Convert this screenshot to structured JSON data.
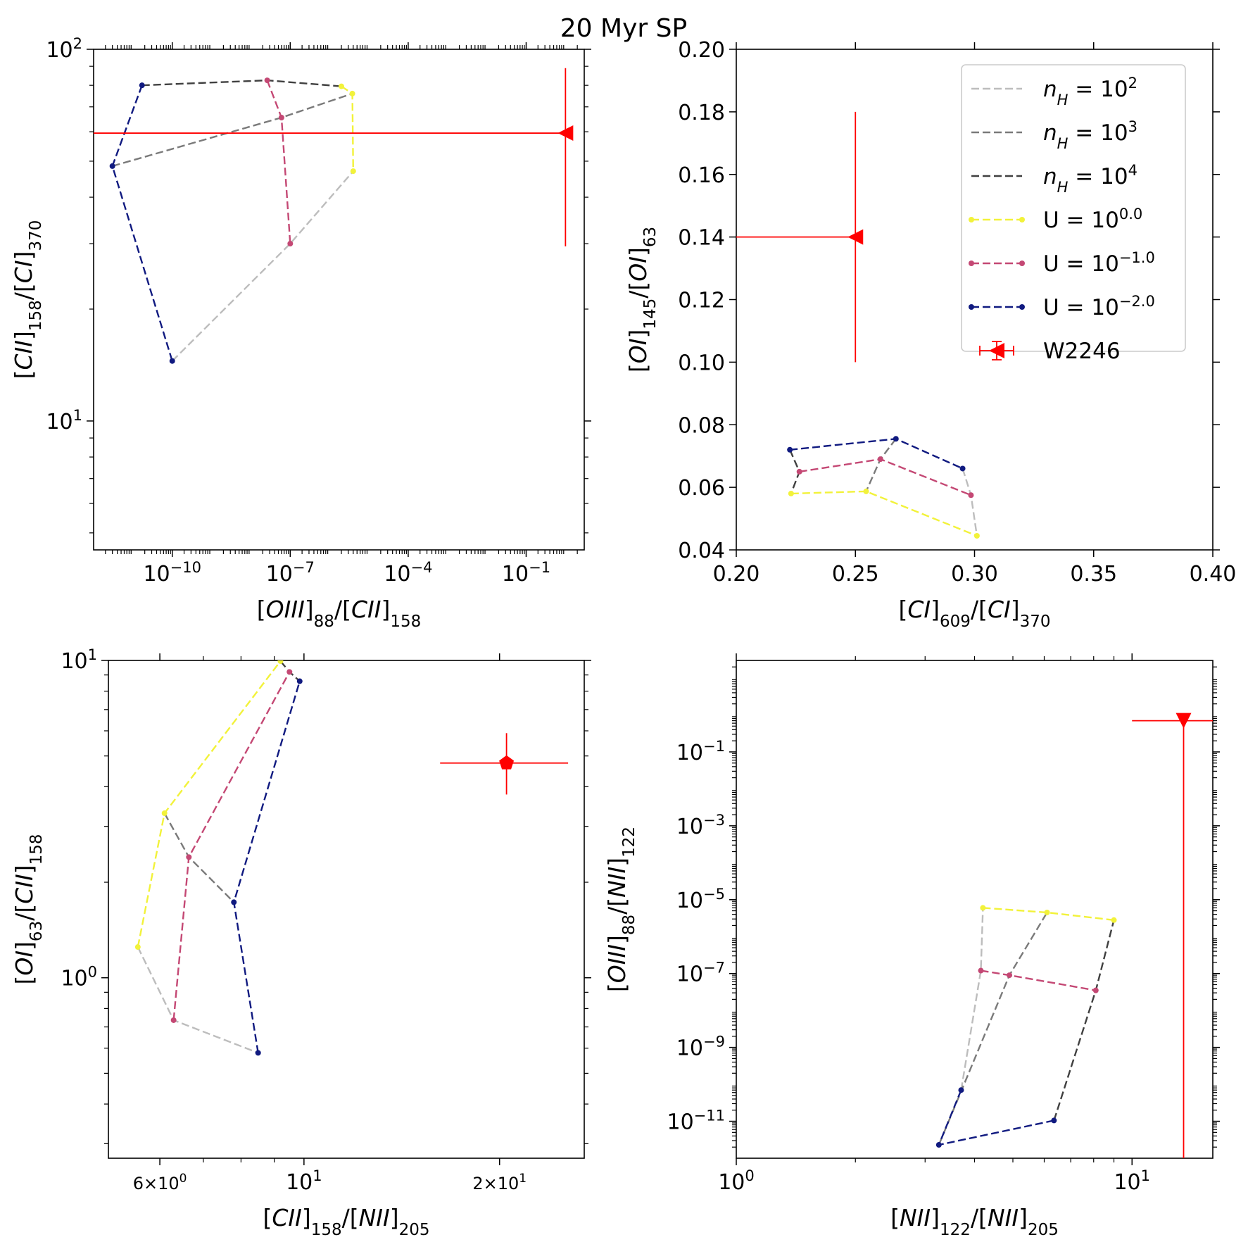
{
  "title": "20 Myr SP",
  "colors": {
    "nH_1e2": "#bdbdbd",
    "nH_1e3": "#7a7a7a",
    "nH_1e4": "#404040",
    "U_0": "#f2f23a",
    "U_m1": "#c44874",
    "U_m2": "#101a80",
    "obs": "#ff0000"
  },
  "legend": {
    "entries": [
      {
        "key": "nH2",
        "base": "n",
        "sub": "H",
        "mid": " = 10",
        "sup": "2",
        "style": "line",
        "color_key": "nH_1e2"
      },
      {
        "key": "nH3",
        "base": "n",
        "sub": "H",
        "mid": " = 10",
        "sup": "3",
        "style": "line",
        "color_key": "nH_1e3"
      },
      {
        "key": "nH4",
        "base": "n",
        "sub": "H",
        "mid": " = 10",
        "sup": "4",
        "style": "line",
        "color_key": "nH_1e4"
      },
      {
        "key": "U0",
        "base": "U = 10",
        "sup": "0.0",
        "style": "marker-line",
        "color_key": "U_0"
      },
      {
        "key": "Um1",
        "base": "U = 10",
        "sup": "−1.0",
        "style": "marker-line",
        "color_key": "U_m1"
      },
      {
        "key": "Um2",
        "base": "U = 10",
        "sup": "−2.0",
        "style": "marker-line",
        "color_key": "U_m2"
      },
      {
        "key": "obs",
        "base": "W2246",
        "style": "errorbar",
        "color_key": "obs"
      }
    ]
  },
  "chart_data": [
    {
      "id": "p1",
      "type": "line",
      "xscale": "log",
      "yscale": "log",
      "xlim": [
        1e-12,
        3
      ],
      "ylim": [
        4.5,
        100
      ],
      "xlabel": {
        "label": "OIII",
        "sub": "88",
        "label2": "CII",
        "sub2": "158"
      },
      "ylabel": {
        "label": "CII",
        "sub": "158",
        "label2": "CI",
        "sub2": "370"
      },
      "xticks": [
        {
          "v": 1e-10,
          "m": "10",
          "e": "−10"
        },
        {
          "v": 1e-07,
          "m": "10",
          "e": "−7"
        },
        {
          "v": 0.0001,
          "m": "10",
          "e": "−4"
        },
        {
          "v": 0.1,
          "m": "10",
          "e": "−1"
        }
      ],
      "yticks": [
        {
          "v": 10,
          "m": "10",
          "e": "1"
        },
        {
          "v": 100,
          "m": "10",
          "e": "2"
        }
      ],
      "series": [
        {
          "name": "nH=1e2",
          "color_key": "nH_1e2",
          "markers": false,
          "x": [
            1e-10,
            1e-07,
            4e-06
          ],
          "y": [
            14.5,
            30,
            47
          ]
        },
        {
          "name": "nH=1e3",
          "color_key": "nH_1e3",
          "markers": false,
          "x": [
            3e-12,
            6e-08,
            3.8e-06
          ],
          "y": [
            48.5,
            65.5,
            76
          ]
        },
        {
          "name": "nH=1e4",
          "color_key": "nH_1e4",
          "markers": false,
          "x": [
            1.7e-11,
            2.6e-08,
            2e-06
          ],
          "y": [
            80,
            82.5,
            79.5
          ]
        },
        {
          "name": "U=1e0",
          "color_key": "U_0",
          "markers": true,
          "x": [
            2e-06,
            3.8e-06,
            4e-06
          ],
          "y": [
            79.5,
            76,
            47
          ]
        },
        {
          "name": "U=1e-1",
          "color_key": "U_m1",
          "markers": true,
          "x": [
            2.6e-08,
            6e-08,
            1e-07
          ],
          "y": [
            82.5,
            65.5,
            30
          ]
        },
        {
          "name": "U=1e-2",
          "color_key": "U_m2",
          "markers": true,
          "x": [
            1.7e-11,
            3e-12,
            1e-10
          ],
          "y": [
            80,
            48.5,
            14.5
          ]
        }
      ],
      "obs": {
        "x": 1.0,
        "y": 59.5,
        "marker": "triangle-left",
        "xerr_lo": 1e-12,
        "xerr_hi": 1.0,
        "yerr_lo": 29.5,
        "yerr_hi": 89
      }
    },
    {
      "id": "p2",
      "type": "line",
      "xscale": "linear",
      "yscale": "linear",
      "xlim": [
        0.2,
        0.4
      ],
      "ylim": [
        0.04,
        0.2
      ],
      "xlabel": {
        "label": "CI",
        "sub": "609",
        "label2": "CI",
        "sub2": "370"
      },
      "ylabel": {
        "label": "OI",
        "sub": "145",
        "label2": "OI",
        "sub2": "63"
      },
      "xticks": [
        {
          "v": 0.2,
          "t": "0.20"
        },
        {
          "v": 0.25,
          "t": "0.25"
        },
        {
          "v": 0.3,
          "t": "0.30"
        },
        {
          "v": 0.35,
          "t": "0.35"
        },
        {
          "v": 0.4,
          "t": "0.40"
        }
      ],
      "yticks": [
        {
          "v": 0.04,
          "t": "0.04"
        },
        {
          "v": 0.06,
          "t": "0.06"
        },
        {
          "v": 0.08,
          "t": "0.08"
        },
        {
          "v": 0.1,
          "t": "0.10"
        },
        {
          "v": 0.12,
          "t": "0.12"
        },
        {
          "v": 0.14,
          "t": "0.14"
        },
        {
          "v": 0.16,
          "t": "0.16"
        },
        {
          "v": 0.18,
          "t": "0.18"
        },
        {
          "v": 0.2,
          "t": "0.20"
        }
      ],
      "series": [
        {
          "name": "nH=1e2",
          "color_key": "nH_1e2",
          "markers": false,
          "x": [
            0.295,
            0.2985,
            0.301
          ],
          "y": [
            0.066,
            0.0575,
            0.0445
          ]
        },
        {
          "name": "nH=1e3",
          "color_key": "nH_1e3",
          "markers": false,
          "x": [
            0.267,
            0.2605,
            0.2545
          ],
          "y": [
            0.0755,
            0.069,
            0.0587
          ]
        },
        {
          "name": "nH=1e4",
          "color_key": "nH_1e4",
          "markers": false,
          "x": [
            0.2225,
            0.2265,
            0.223
          ],
          "y": [
            0.072,
            0.065,
            0.058
          ]
        },
        {
          "name": "U=1e0",
          "color_key": "U_0",
          "markers": true,
          "x": [
            0.223,
            0.2545,
            0.301
          ],
          "y": [
            0.058,
            0.0587,
            0.0445
          ]
        },
        {
          "name": "U=1e-1",
          "color_key": "U_m1",
          "markers": true,
          "x": [
            0.2265,
            0.2605,
            0.2985
          ],
          "y": [
            0.065,
            0.069,
            0.0575
          ]
        },
        {
          "name": "U=1e-2",
          "color_key": "U_m2",
          "markers": true,
          "x": [
            0.2225,
            0.267,
            0.295
          ],
          "y": [
            0.072,
            0.0755,
            0.066
          ]
        }
      ],
      "obs": {
        "x": 0.25,
        "y": 0.14,
        "marker": "triangle-left",
        "xerr_lo": 0.2,
        "xerr_hi": 0.25,
        "yerr_lo": 0.1,
        "yerr_hi": 0.18
      }
    },
    {
      "id": "p3",
      "type": "line",
      "xscale": "log",
      "yscale": "log",
      "xlim": [
        5.0,
        27
      ],
      "ylim": [
        0.27,
        10
      ],
      "xlabel": {
        "label": "CII",
        "sub": "158",
        "label2": "NII",
        "sub2": "205"
      },
      "ylabel": {
        "label": "OI",
        "sub": "63",
        "label2": "CII",
        "sub2": "158"
      },
      "xticks": [
        {
          "v": 6,
          "m": "6×10",
          "e": "0",
          "small": true
        },
        {
          "v": 10,
          "m": "10",
          "e": "1"
        },
        {
          "v": 20,
          "m": "2×10",
          "e": "1",
          "small": true
        }
      ],
      "yticks": [
        {
          "v": 1,
          "m": "10",
          "e": "0"
        },
        {
          "v": 10,
          "m": "10",
          "e": "1"
        }
      ],
      "series": [
        {
          "name": "nH=1e2",
          "color_key": "nH_1e2",
          "markers": false,
          "x": [
            5.55,
            6.3,
            8.5
          ],
          "y": [
            1.25,
            0.735,
            0.58
          ]
        },
        {
          "name": "nH=1e3",
          "color_key": "nH_1e3",
          "markers": false,
          "x": [
            6.1,
            6.65,
            7.8
          ],
          "y": [
            3.3,
            2.4,
            1.73
          ]
        },
        {
          "name": "nH=1e4",
          "color_key": "nH_1e4",
          "markers": false,
          "x": [
            9.2,
            9.5,
            9.85
          ],
          "y": [
            9.95,
            9.2,
            8.6
          ]
        },
        {
          "name": "U=1e0",
          "color_key": "U_0",
          "markers": true,
          "x": [
            5.55,
            6.1,
            9.2
          ],
          "y": [
            1.25,
            3.3,
            9.95
          ]
        },
        {
          "name": "U=1e-1",
          "color_key": "U_m1",
          "markers": true,
          "x": [
            6.3,
            6.65,
            9.5
          ],
          "y": [
            0.735,
            2.4,
            9.2
          ]
        },
        {
          "name": "U=1e-2",
          "color_key": "U_m2",
          "markers": true,
          "x": [
            8.5,
            7.8,
            9.85
          ],
          "y": [
            0.58,
            1.73,
            8.6
          ]
        }
      ],
      "obs": {
        "x": 20.5,
        "y": 4.75,
        "marker": "pentagon",
        "xerr_lo": 16.2,
        "xerr_hi": 25.5,
        "yerr_lo": 3.78,
        "yerr_hi": 5.9
      }
    },
    {
      "id": "p4",
      "type": "line",
      "xscale": "log",
      "yscale": "log",
      "xlim": [
        1,
        16
      ],
      "ylim": [
        1e-12,
        30.0
      ],
      "xlabel": {
        "label": "NII",
        "sub": "122",
        "label2": "NII",
        "sub2": "205"
      },
      "ylabel": {
        "label": "OIII",
        "sub": "88",
        "label2": "NII",
        "sub2": "122"
      },
      "xticks": [
        {
          "v": 1,
          "m": "10",
          "e": "0"
        },
        {
          "v": 10,
          "m": "10",
          "e": "1"
        }
      ],
      "yticks": [
        {
          "v": 1e-11,
          "m": "10",
          "e": "−11"
        },
        {
          "v": 1e-09,
          "m": "10",
          "e": "−9"
        },
        {
          "v": 1e-07,
          "m": "10",
          "e": "−7"
        },
        {
          "v": 1e-05,
          "m": "10",
          "e": "−5"
        },
        {
          "v": 0.001,
          "m": "10",
          "e": "−3"
        },
        {
          "v": 0.1,
          "m": "10",
          "e": "−1"
        }
      ],
      "series": [
        {
          "name": "nH=1e2",
          "color_key": "nH_1e2",
          "markers": false,
          "x": [
            3.7,
            4.15,
            4.2
          ],
          "y": [
            7e-11,
            1.2e-07,
            6e-06
          ]
        },
        {
          "name": "nH=1e3",
          "color_key": "nH_1e3",
          "markers": false,
          "x": [
            3.25,
            4.9,
            6.1
          ],
          "y": [
            2.3e-12,
            9e-08,
            4.5e-06
          ]
        },
        {
          "name": "nH=1e4",
          "color_key": "nH_1e4",
          "markers": false,
          "x": [
            6.35,
            8.1,
            9.0
          ],
          "y": [
            1.05e-11,
            3.5e-08,
            2.8e-06
          ]
        },
        {
          "name": "U=1e0",
          "color_key": "U_0",
          "markers": true,
          "x": [
            4.2,
            6.1,
            9.0
          ],
          "y": [
            6e-06,
            4.5e-06,
            2.8e-06
          ]
        },
        {
          "name": "U=1e-1",
          "color_key": "U_m1",
          "markers": true,
          "x": [
            4.15,
            4.9,
            8.1
          ],
          "y": [
            1.2e-07,
            9e-08,
            3.5e-08
          ]
        },
        {
          "name": "U=1e-2",
          "color_key": "U_m2",
          "markers": true,
          "x": [
            3.7,
            3.25,
            6.35
          ],
          "y": [
            7e-11,
            2.3e-12,
            1.05e-11
          ]
        }
      ],
      "obs": {
        "x": 13.5,
        "y": 0.7,
        "marker": "triangle-down",
        "xerr_lo": 10,
        "xerr_hi": 16,
        "yerr_lo": 1e-12,
        "yerr_hi": 0.7
      }
    }
  ]
}
